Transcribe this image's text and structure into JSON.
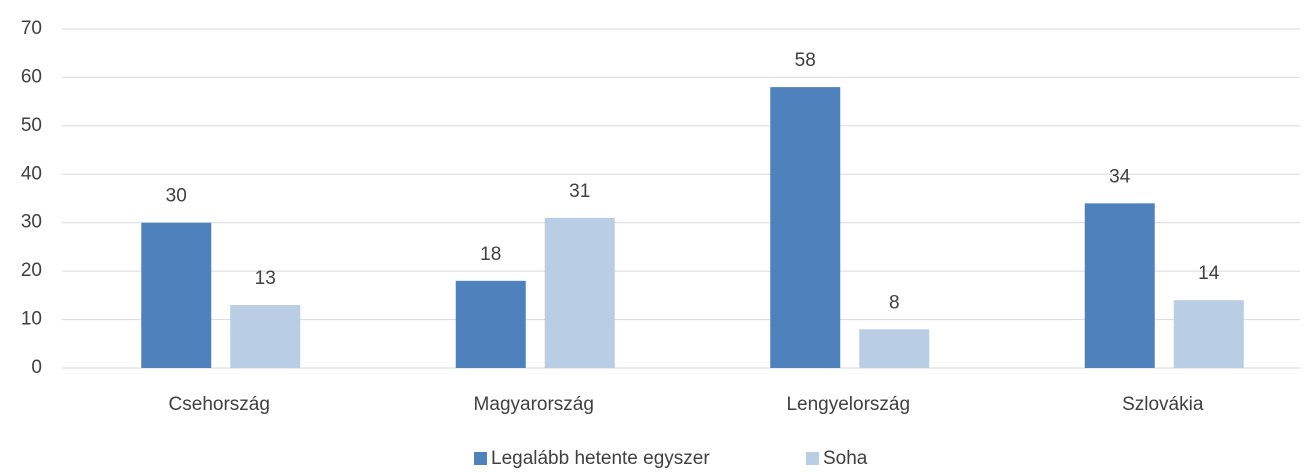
{
  "chart_data": {
    "type": "bar",
    "categories": [
      "Csehország",
      "Magyarország",
      "Lengyelország",
      "Szlovákia"
    ],
    "series": [
      {
        "name": "Legalább hetente egyszer",
        "color": "#4f81bd",
        "values": [
          30,
          18,
          58,
          34
        ]
      },
      {
        "name": "Soha",
        "color": "#b9cde5",
        "values": [
          13,
          31,
          8,
          14
        ]
      }
    ],
    "ylim": [
      0,
      70
    ],
    "yticks": [
      0,
      10,
      20,
      30,
      40,
      50,
      60,
      70
    ],
    "grid": true,
    "legend": "bottom"
  }
}
